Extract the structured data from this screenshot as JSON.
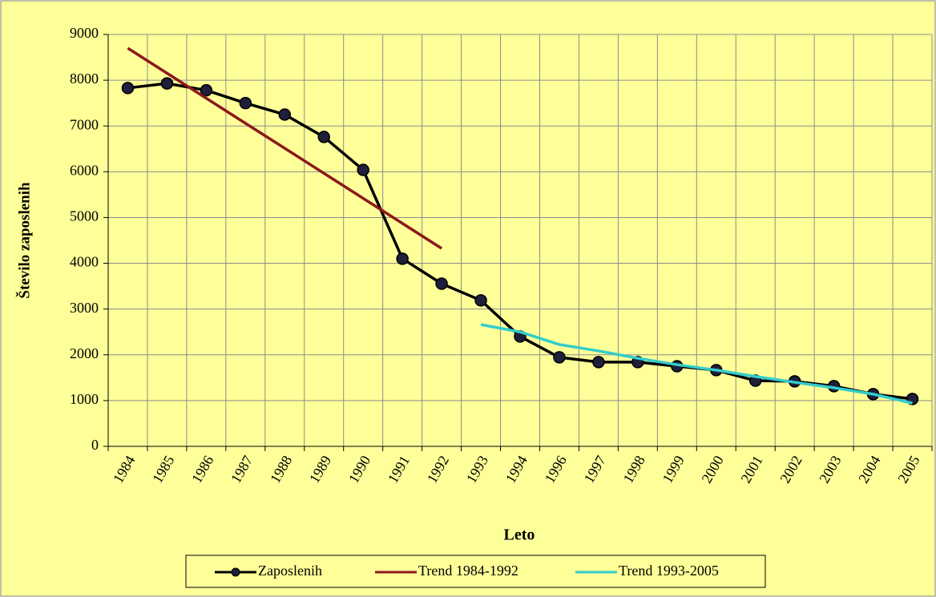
{
  "chart_data": {
    "type": "line",
    "x_label": "Leto",
    "y_label": "Število zaposlenih",
    "categories": [
      "1984",
      "1985",
      "1986",
      "1987",
      "1988",
      "1989",
      "1990",
      "1991",
      "1992",
      "1993",
      "1994",
      "1996",
      "1997",
      "1998",
      "1999",
      "2000",
      "2001",
      "2002",
      "2003",
      "2004",
      "2005"
    ],
    "series": [
      {
        "name": "Zaposlenih",
        "color": "#000000",
        "markers": true,
        "values": [
          7830,
          7930,
          7780,
          7500,
          7250,
          6760,
          6040,
          4100,
          3555,
          3190,
          2400,
          1945,
          1840,
          1840,
          1750,
          1665,
          1435,
          1420,
          1315,
          1140,
          1035
        ]
      },
      {
        "name": "Trend 1984-1992",
        "color": "#8b1a1a",
        "markers": false,
        "values": [
          8700,
          8153,
          7606,
          7059,
          6513,
          5966,
          5419,
          4872,
          4325,
          null,
          null,
          null,
          null,
          null,
          null,
          null,
          null,
          null,
          null,
          null,
          null
        ]
      },
      {
        "name": "Trend 1993-2005",
        "color": "#33cccc",
        "markers": false,
        "values": [
          null,
          null,
          null,
          null,
          null,
          null,
          null,
          null,
          null,
          2660,
          2500,
          2225,
          2085,
          1925,
          1785,
          1665,
          1525,
          1400,
          1280,
          1140,
          945
        ]
      }
    ],
    "ylim": [
      0,
      9000
    ],
    "yticks": [
      0,
      1000,
      2000,
      3000,
      4000,
      5000,
      6000,
      7000,
      8000,
      9000
    ],
    "grid": true,
    "legend": "bottom"
  }
}
